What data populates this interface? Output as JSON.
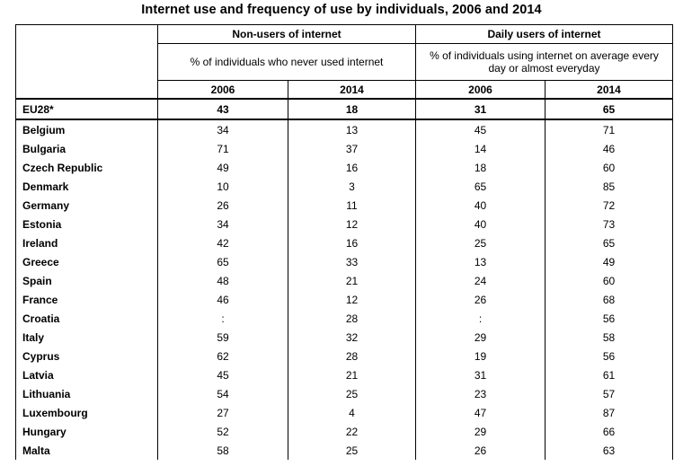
{
  "title": "Internet use and frequency of use by individuals, 2006 and 2014",
  "groups": [
    {
      "label": "Non-users of internet",
      "description": "% of individuals who never used internet",
      "years": [
        "2006",
        "2014"
      ]
    },
    {
      "label": "Daily users of internet",
      "description": "% of individuals using internet on average every day or almost everyday",
      "years": [
        "2006",
        "2014"
      ]
    }
  ],
  "rows": [
    {
      "country": "EU28*",
      "values": [
        "43",
        "18",
        "31",
        "65"
      ]
    },
    {
      "country": "Belgium",
      "values": [
        "34",
        "13",
        "45",
        "71"
      ]
    },
    {
      "country": "Bulgaria",
      "values": [
        "71",
        "37",
        "14",
        "46"
      ]
    },
    {
      "country": "Czech Republic",
      "values": [
        "49",
        "16",
        "18",
        "60"
      ]
    },
    {
      "country": "Denmark",
      "values": [
        "10",
        "3",
        "65",
        "85"
      ]
    },
    {
      "country": "Germany",
      "values": [
        "26",
        "11",
        "40",
        "72"
      ]
    },
    {
      "country": "Estonia",
      "values": [
        "34",
        "12",
        "40",
        "73"
      ]
    },
    {
      "country": "Ireland",
      "values": [
        "42",
        "16",
        "25",
        "65"
      ]
    },
    {
      "country": "Greece",
      "values": [
        "65",
        "33",
        "13",
        "49"
      ]
    },
    {
      "country": "Spain",
      "values": [
        "48",
        "21",
        "24",
        "60"
      ]
    },
    {
      "country": "France",
      "values": [
        "46",
        "12",
        "26",
        "68"
      ]
    },
    {
      "country": "Croatia",
      "values": [
        ":",
        "28",
        ":",
        "56"
      ]
    },
    {
      "country": "Italy",
      "values": [
        "59",
        "32",
        "29",
        "58"
      ]
    },
    {
      "country": "Cyprus",
      "values": [
        "62",
        "28",
        "19",
        "56"
      ]
    },
    {
      "country": "Latvia",
      "values": [
        "45",
        "21",
        "31",
        "61"
      ]
    },
    {
      "country": "Lithuania",
      "values": [
        "54",
        "25",
        "23",
        "57"
      ]
    },
    {
      "country": "Luxembourg",
      "values": [
        "27",
        "4",
        "47",
        "87"
      ]
    },
    {
      "country": "Hungary",
      "values": [
        "52",
        "22",
        "29",
        "66"
      ]
    },
    {
      "country": "Malta",
      "values": [
        "58",
        "25",
        "26",
        "63"
      ]
    }
  ]
}
